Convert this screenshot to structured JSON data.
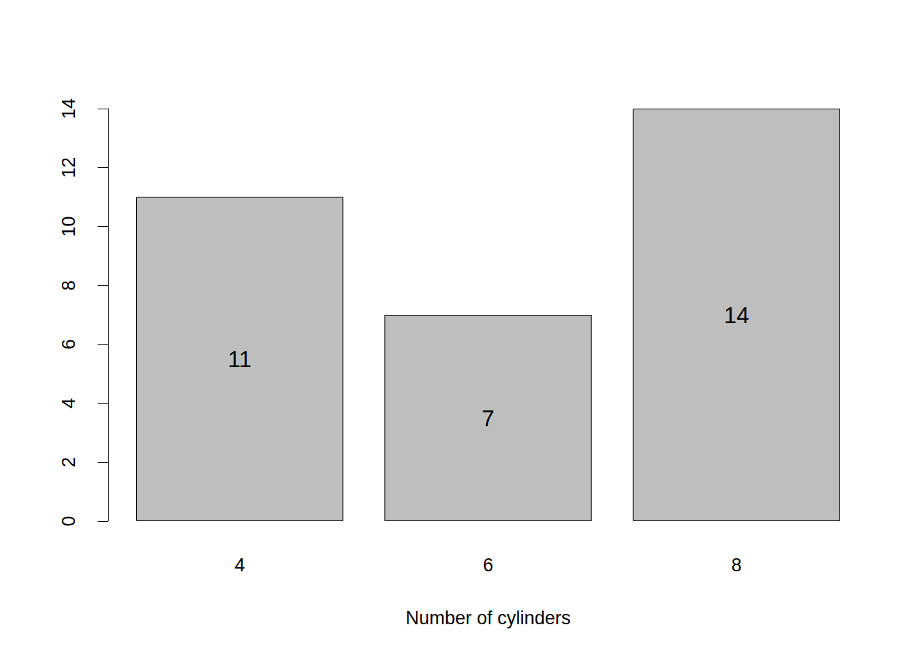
{
  "chart_data": {
    "type": "bar",
    "xlabel": "Number of cylinders",
    "categories": [
      "4",
      "6",
      "8"
    ],
    "values": [
      11,
      7,
      14
    ],
    "color": "#bebebe",
    "ylim": [
      0,
      14
    ],
    "yticks": [
      0,
      2,
      4,
      6,
      8,
      10,
      12,
      14
    ],
    "grid": false,
    "data_labels": true
  }
}
